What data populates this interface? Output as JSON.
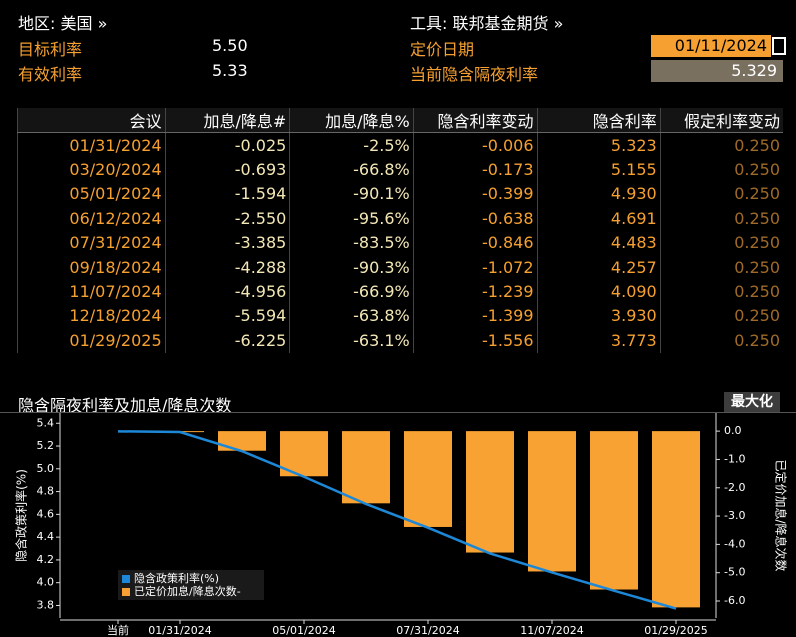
{
  "header": {
    "region": "地区: 美国 »",
    "instrument": "工具: 联邦基金期货 »",
    "target_rate_label": "目标利率",
    "target_rate": "5.50",
    "effective_rate_label": "有效利率",
    "effective_rate": "5.33",
    "pricing_date_label": "定价日期",
    "pricing_date": "01/11/2024",
    "implied_rate_label": "当前隐含隔夜利率",
    "implied_rate": "5.329"
  },
  "table": {
    "columns": [
      "会议",
      "加息/降息#",
      "加息/降息%",
      "隐含利率变动",
      "隐含利率",
      "假定利率变动"
    ],
    "rows": [
      [
        "01/31/2024",
        "-0.025",
        "-2.5%",
        "-0.006",
        "5.323",
        "0.250"
      ],
      [
        "03/20/2024",
        "-0.693",
        "-66.8%",
        "-0.173",
        "5.155",
        "0.250"
      ],
      [
        "05/01/2024",
        "-1.594",
        "-90.1%",
        "-0.399",
        "4.930",
        "0.250"
      ],
      [
        "06/12/2024",
        "-2.550",
        "-95.6%",
        "-0.638",
        "4.691",
        "0.250"
      ],
      [
        "07/31/2024",
        "-3.385",
        "-83.5%",
        "-0.846",
        "4.483",
        "0.250"
      ],
      [
        "09/18/2024",
        "-4.288",
        "-90.3%",
        "-1.072",
        "4.257",
        "0.250"
      ],
      [
        "11/07/2024",
        "-4.956",
        "-66.9%",
        "-1.239",
        "4.090",
        "0.250"
      ],
      [
        "12/18/2024",
        "-5.594",
        "-63.8%",
        "-1.399",
        "3.930",
        "0.250"
      ],
      [
        "01/29/2025",
        "-6.225",
        "-63.1%",
        "-1.556",
        "3.773",
        "0.250"
      ]
    ]
  },
  "maximize_button": "最大化",
  "chart_data": {
    "type": "line",
    "title": "隐含隔夜利率及加息/降息次数",
    "y_label": "隐含政策利率(%)",
    "y2_label": "已定价加息/降息次数",
    "categories": [
      "当前",
      "01/31/2024",
      null,
      "05/01/2024",
      null,
      "07/31/2024",
      null,
      "11/07/2024",
      null,
      "01/29/2025"
    ],
    "series": [
      {
        "name": "隐含政策利率(%)",
        "type": "line",
        "color": "#1e88d8",
        "values": [
          5.329,
          5.323,
          5.155,
          4.93,
          4.691,
          4.483,
          4.257,
          4.09,
          3.93,
          3.773
        ]
      },
      {
        "name": "已定价加息/降息次数-",
        "type": "bar",
        "axis": "y2",
        "color": "#f7a233",
        "values": [
          null,
          -0.025,
          -0.693,
          -1.594,
          -2.55,
          -3.385,
          -4.288,
          -4.956,
          -5.594,
          -6.225
        ]
      }
    ],
    "ylim": [
      3.69,
      5.49
    ],
    "yticks": [
      3.8,
      {
        "value": 4,
        "label": "4.0"
      },
      4.2,
      4.4,
      4.6,
      4.8,
      {
        "value": 5,
        "label": "5.0"
      },
      5.2,
      5.4
    ],
    "y2lim": [
      -6.6,
      0.64
    ],
    "y2ticks": [
      {
        "value": 0,
        "label": "0.0"
      },
      {
        "value": -1,
        "label": "-1.0"
      },
      {
        "value": -2,
        "label": "-2.0"
      },
      {
        "value": -3,
        "label": "-3.0"
      },
      {
        "value": -4,
        "label": "-4.0"
      },
      {
        "value": -5,
        "label": "-5.0"
      },
      {
        "value": -6,
        "label": "-6.0"
      }
    ]
  }
}
